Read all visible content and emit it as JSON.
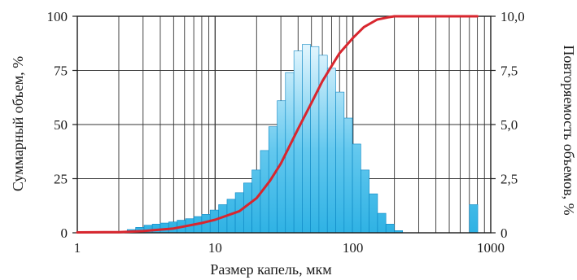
{
  "chart_data": {
    "type": "bar",
    "xlabel": "Размер капель, мкм",
    "ylabel_left": "Суммарный объем, %",
    "ylabel_right": "Повторяемость объемов, %",
    "xscale": "log",
    "xlim": [
      1,
      1000
    ],
    "ylim_left": [
      0,
      100
    ],
    "ylim_right": [
      0,
      10
    ],
    "x_ticks": [
      "1",
      "10",
      "100",
      "1000"
    ],
    "y_left_ticks": [
      "0",
      "25",
      "50",
      "75",
      "100"
    ],
    "y_right_ticks": [
      "0",
      "2,5",
      "5,0",
      "7,5",
      "10,0"
    ],
    "grid": true,
    "colors": {
      "bars_top": "#dff4fd",
      "bars_bottom": "#2fb2e4",
      "bar_edge": "#0b86c3",
      "cumulative_line": "#d8262e",
      "grid": "#333333"
    },
    "series": [
      {
        "kind": "bar",
        "axis": "right",
        "bins": [
          {
            "x0": 2.0,
            "x1": 2.3,
            "value": 0.05
          },
          {
            "x0": 2.3,
            "x1": 2.65,
            "value": 0.15
          },
          {
            "x0": 2.65,
            "x1": 3.05,
            "value": 0.25
          },
          {
            "x0": 3.05,
            "x1": 3.5,
            "value": 0.35
          },
          {
            "x0": 3.5,
            "x1": 4.0,
            "value": 0.4
          },
          {
            "x0": 4.0,
            "x1": 4.6,
            "value": 0.45
          },
          {
            "x0": 4.6,
            "x1": 5.3,
            "value": 0.5
          },
          {
            "x0": 5.3,
            "x1": 6.1,
            "value": 0.58
          },
          {
            "x0": 6.1,
            "x1": 7.0,
            "value": 0.65
          },
          {
            "x0": 7.0,
            "x1": 8.0,
            "value": 0.75
          },
          {
            "x0": 8.0,
            "x1": 9.2,
            "value": 0.85
          },
          {
            "x0": 9.2,
            "x1": 10.6,
            "value": 1.05
          },
          {
            "x0": 10.6,
            "x1": 12.2,
            "value": 1.3
          },
          {
            "x0": 12.2,
            "x1": 14.0,
            "value": 1.55
          },
          {
            "x0": 14.0,
            "x1": 16.1,
            "value": 1.85
          },
          {
            "x0": 16.1,
            "x1": 18.5,
            "value": 2.3
          },
          {
            "x0": 18.5,
            "x1": 21.3,
            "value": 2.9
          },
          {
            "x0": 21.3,
            "x1": 24.5,
            "value": 3.8
          },
          {
            "x0": 24.5,
            "x1": 28.2,
            "value": 4.9
          },
          {
            "x0": 28.2,
            "x1": 32.4,
            "value": 6.1
          },
          {
            "x0": 32.4,
            "x1": 37.3,
            "value": 7.4
          },
          {
            "x0": 37.3,
            "x1": 42.9,
            "value": 8.4
          },
          {
            "x0": 42.9,
            "x1": 49.3,
            "value": 8.7
          },
          {
            "x0": 49.3,
            "x1": 56.7,
            "value": 8.6
          },
          {
            "x0": 56.7,
            "x1": 65.2,
            "value": 8.2
          },
          {
            "x0": 65.2,
            "x1": 75.0,
            "value": 7.6
          },
          {
            "x0": 75.0,
            "x1": 86.3,
            "value": 6.5
          },
          {
            "x0": 86.3,
            "x1": 99.2,
            "value": 5.3
          },
          {
            "x0": 99.2,
            "x1": 114.1,
            "value": 4.1
          },
          {
            "x0": 114.1,
            "x1": 131.2,
            "value": 2.9
          },
          {
            "x0": 131.2,
            "x1": 150.9,
            "value": 1.8
          },
          {
            "x0": 150.9,
            "x1": 173.5,
            "value": 0.9
          },
          {
            "x0": 173.5,
            "x1": 199.5,
            "value": 0.4
          },
          {
            "x0": 199.5,
            "x1": 229.4,
            "value": 0.1
          },
          {
            "x0": 700.0,
            "x1": 805.0,
            "value": 1.3
          }
        ]
      },
      {
        "kind": "line",
        "axis": "left",
        "points": [
          [
            1,
            0.2
          ],
          [
            2,
            0.3
          ],
          [
            3,
            0.8
          ],
          [
            5,
            2.0
          ],
          [
            8,
            4.5
          ],
          [
            10,
            6.0
          ],
          [
            15,
            10.0
          ],
          [
            20,
            16.0
          ],
          [
            25,
            24.0
          ],
          [
            30,
            32.0
          ],
          [
            40,
            48.0
          ],
          [
            50,
            60.0
          ],
          [
            60,
            70.0
          ],
          [
            70,
            77.0
          ],
          [
            80,
            83.0
          ],
          [
            100,
            90.0
          ],
          [
            120,
            95.0
          ],
          [
            150,
            98.5
          ],
          [
            180,
            99.5
          ],
          [
            200,
            100.0
          ],
          [
            700,
            100.0
          ],
          [
            800,
            100.0
          ]
        ]
      }
    ]
  }
}
